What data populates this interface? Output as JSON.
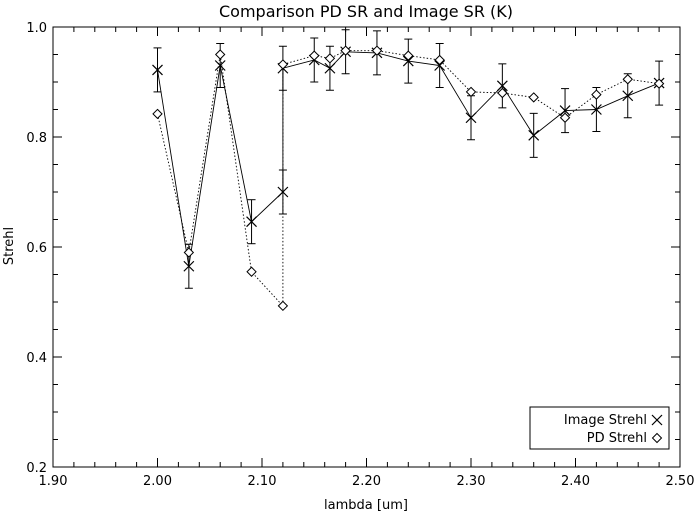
{
  "chart_data": {
    "type": "line",
    "title": "Comparison PD SR and Image SR (K)",
    "xlabel": "lambda [um]",
    "ylabel": "Strehl",
    "xlim": [
      1.9,
      2.5
    ],
    "ylim": [
      0.2,
      1.0
    ],
    "xticks": [
      "1.90",
      "2.00",
      "2.10",
      "2.20",
      "2.30",
      "2.40",
      "2.50"
    ],
    "yticks": [
      "0.2",
      "0.4",
      "0.6",
      "0.8",
      "1.0"
    ],
    "xtick_values": [
      1.9,
      2.0,
      2.1,
      2.2,
      2.3,
      2.4,
      2.5
    ],
    "ytick_values": [
      0.2,
      0.4,
      0.6,
      0.8,
      1.0
    ],
    "grid": false,
    "legend_position": "bottom-right",
    "series": [
      {
        "name": "Image Strehl",
        "marker": "x",
        "line": "solid",
        "x": [
          2.0,
          2.03,
          2.06,
          2.09,
          2.12,
          2.12,
          2.15,
          2.165,
          2.18,
          2.21,
          2.24,
          2.27,
          2.3,
          2.33,
          2.36,
          2.39,
          2.42,
          2.45,
          2.48
        ],
        "y": [
          0.922,
          0.565,
          0.93,
          0.646,
          0.7,
          0.925,
          0.94,
          0.925,
          0.955,
          0.953,
          0.938,
          0.93,
          0.835,
          0.893,
          0.803,
          0.848,
          0.85,
          0.875,
          0.898
        ],
        "err": [
          0.04,
          0.04,
          0.04,
          0.04,
          0.04,
          0.04,
          0.04,
          0.04,
          0.04,
          0.04,
          0.04,
          0.04,
          0.04,
          0.04,
          0.04,
          0.04,
          0.04,
          0.04,
          0.04
        ]
      },
      {
        "name": "PD Strehl",
        "marker": "diamond",
        "line": "dotted",
        "x": [
          2.0,
          2.03,
          2.06,
          2.09,
          2.12,
          2.12,
          2.15,
          2.165,
          2.18,
          2.21,
          2.24,
          2.27,
          2.3,
          2.33,
          2.36,
          2.39,
          2.42,
          2.45,
          2.48
        ],
        "y": [
          0.842,
          0.59,
          0.95,
          0.555,
          0.493,
          0.932,
          0.948,
          0.943,
          0.957,
          0.957,
          0.948,
          0.94,
          0.882,
          0.88,
          0.872,
          0.835,
          0.877,
          0.905,
          0.897
        ]
      }
    ]
  }
}
